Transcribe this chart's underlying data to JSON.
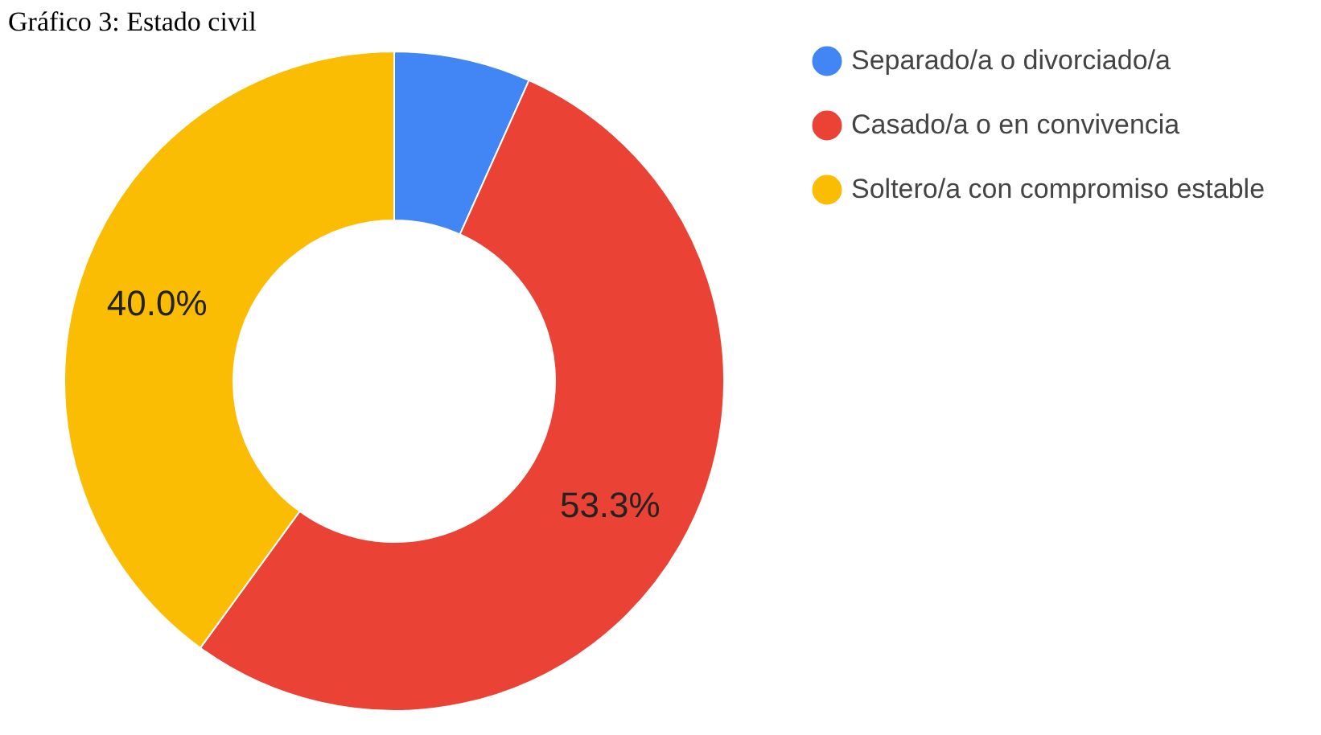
{
  "chart_data": {
    "type": "donut",
    "title": "Gráfico 3: Estado civil",
    "categories": [
      "Separado/a o divorciado/a",
      "Casado/a o en convivencia",
      "Soltero/a con compromiso estable"
    ],
    "values": [
      6.7,
      53.3,
      40.0
    ],
    "colors": [
      "#4285f4",
      "#ea4335",
      "#fbbc04"
    ],
    "value_labels": [
      null,
      "53.3%",
      "40.0%"
    ],
    "legend": "top right"
  }
}
